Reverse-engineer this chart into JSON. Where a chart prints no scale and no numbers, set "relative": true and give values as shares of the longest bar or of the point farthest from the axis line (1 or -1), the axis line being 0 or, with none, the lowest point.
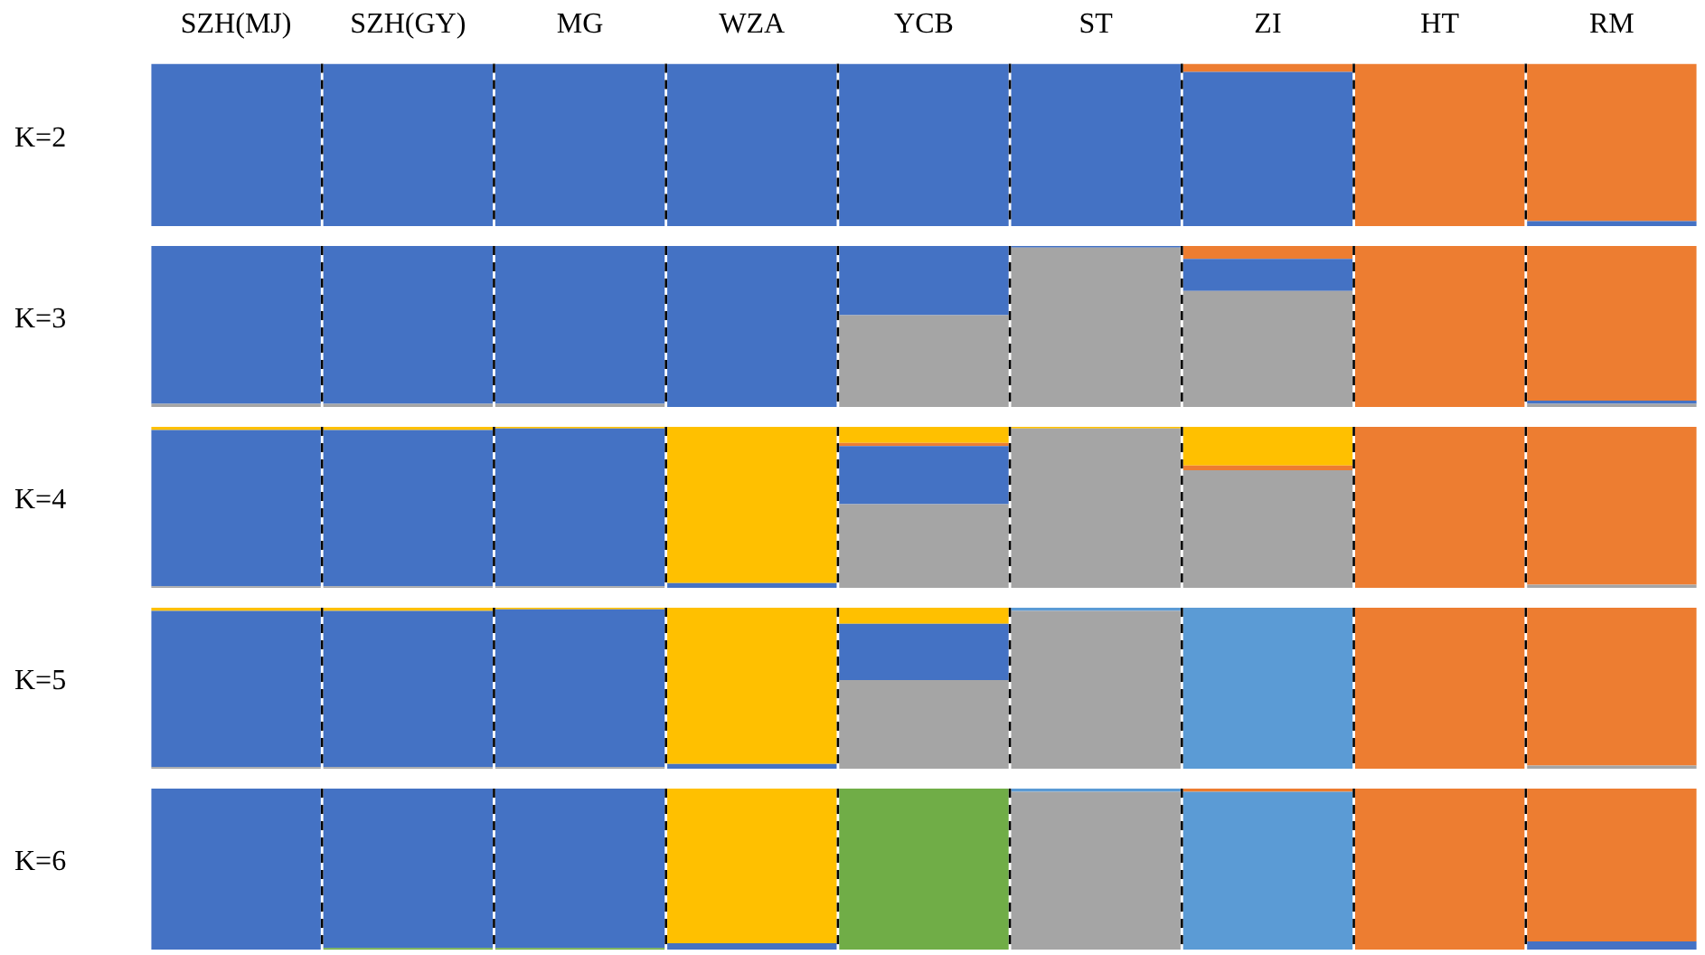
{
  "chart_data": [
    {
      "type": "bar",
      "stacked": true,
      "relative": true,
      "ylabel": "K=2",
      "grid": "x",
      "tick_labels": "x",
      "categories": [
        "SZH(MJ)",
        "SZH(GY)",
        "MG",
        "WZA",
        "YCB",
        "ST",
        "ZI",
        "HT",
        "RM"
      ],
      "series": [
        {
          "color": "#4472c4",
          "values": [
            1,
            1,
            1,
            1,
            1,
            1,
            0.95,
            0,
            0.03
          ]
        },
        {
          "color": "#ed7d31",
          "values": [
            0,
            0,
            0,
            0,
            0,
            0,
            0.05,
            1,
            0.97
          ]
        }
      ]
    },
    {
      "type": "bar",
      "stacked": true,
      "relative": true,
      "ylabel": "K=3",
      "grid": "x",
      "tick_labels": false,
      "categories": [
        null,
        null,
        null,
        null,
        null,
        null,
        null,
        null,
        null
      ],
      "series": [
        {
          "color": "#a5a5a5",
          "values": [
            0.02,
            0.02,
            0.02,
            0,
            0.57,
            0.99,
            0.72,
            0,
            0.02
          ]
        },
        {
          "color": "#4472c4",
          "values": [
            0.98,
            0.98,
            0.98,
            1,
            0.43,
            0.01,
            0.2,
            0,
            0.02
          ]
        },
        {
          "color": "#ed7d31",
          "values": [
            0,
            0,
            0,
            0,
            0,
            0,
            0.08,
            1,
            0.96
          ]
        }
      ]
    },
    {
      "type": "bar",
      "stacked": true,
      "relative": true,
      "ylabel": "K=4",
      "grid": "x",
      "tick_labels": false,
      "categories": [
        null,
        null,
        null,
        null,
        null,
        null,
        null,
        null,
        null
      ],
      "series": [
        {
          "color": "#a5a5a5",
          "values": [
            0.01,
            0.01,
            0.01,
            0,
            0.52,
            0.99,
            0.73,
            0,
            0.02
          ]
        },
        {
          "color": "#4472c4",
          "values": [
            0.97,
            0.97,
            0.98,
            0.03,
            0.36,
            0,
            0,
            0,
            0
          ]
        },
        {
          "color": "#ed7d31",
          "values": [
            0,
            0,
            0,
            0,
            0.02,
            0,
            0.03,
            1,
            0.98
          ]
        },
        {
          "color": "#ffc000",
          "values": [
            0.02,
            0.02,
            0.01,
            0.97,
            0.1,
            0.01,
            0.24,
            0,
            0
          ]
        }
      ]
    },
    {
      "type": "bar",
      "stacked": true,
      "relative": true,
      "ylabel": "K=5",
      "grid": "x",
      "tick_labels": false,
      "categories": [
        null,
        null,
        null,
        null,
        null,
        null,
        null,
        null,
        null
      ],
      "series": [
        {
          "color": "#a5a5a5",
          "values": [
            0.01,
            0.01,
            0.01,
            0,
            0.55,
            0.98,
            0,
            0,
            0.02
          ]
        },
        {
          "color": "#4472c4",
          "values": [
            0.97,
            0.97,
            0.98,
            0.03,
            0.35,
            0,
            0,
            0,
            0
          ]
        },
        {
          "color": "#5b9bd5",
          "values": [
            0,
            0,
            0,
            0,
            0,
            0.02,
            1,
            0,
            0
          ]
        },
        {
          "color": "#ed7d31",
          "values": [
            0,
            0,
            0,
            0,
            0,
            0,
            0,
            1,
            0.98
          ]
        },
        {
          "color": "#ffc000",
          "values": [
            0.02,
            0.02,
            0.01,
            0.97,
            0.1,
            0,
            0,
            0,
            0
          ]
        }
      ]
    },
    {
      "type": "bar",
      "stacked": true,
      "relative": true,
      "ylabel": "K=6",
      "grid": "x",
      "tick_labels": false,
      "categories": [
        null,
        null,
        null,
        null,
        null,
        null,
        null,
        null,
        null
      ],
      "series": [
        {
          "color": "#70ad47",
          "values": [
            0,
            0.01,
            0.01,
            0,
            1,
            0,
            0,
            0,
            0
          ]
        },
        {
          "color": "#a5a5a5",
          "values": [
            0,
            0,
            0,
            0,
            0,
            0.98,
            0,
            0,
            0
          ]
        },
        {
          "color": "#4472c4",
          "values": [
            1,
            0.99,
            0.99,
            0.04,
            0,
            0,
            0,
            0,
            0.05
          ]
        },
        {
          "color": "#5b9bd5",
          "values": [
            0,
            0,
            0,
            0,
            0,
            0.02,
            0.98,
            0,
            0
          ]
        },
        {
          "color": "#ed7d31",
          "values": [
            0,
            0,
            0,
            0,
            0,
            0,
            0.02,
            1,
            0.95
          ]
        },
        {
          "color": "#ffc000",
          "values": [
            0,
            0,
            0,
            0.96,
            0,
            0,
            0,
            0,
            0
          ]
        }
      ]
    }
  ]
}
